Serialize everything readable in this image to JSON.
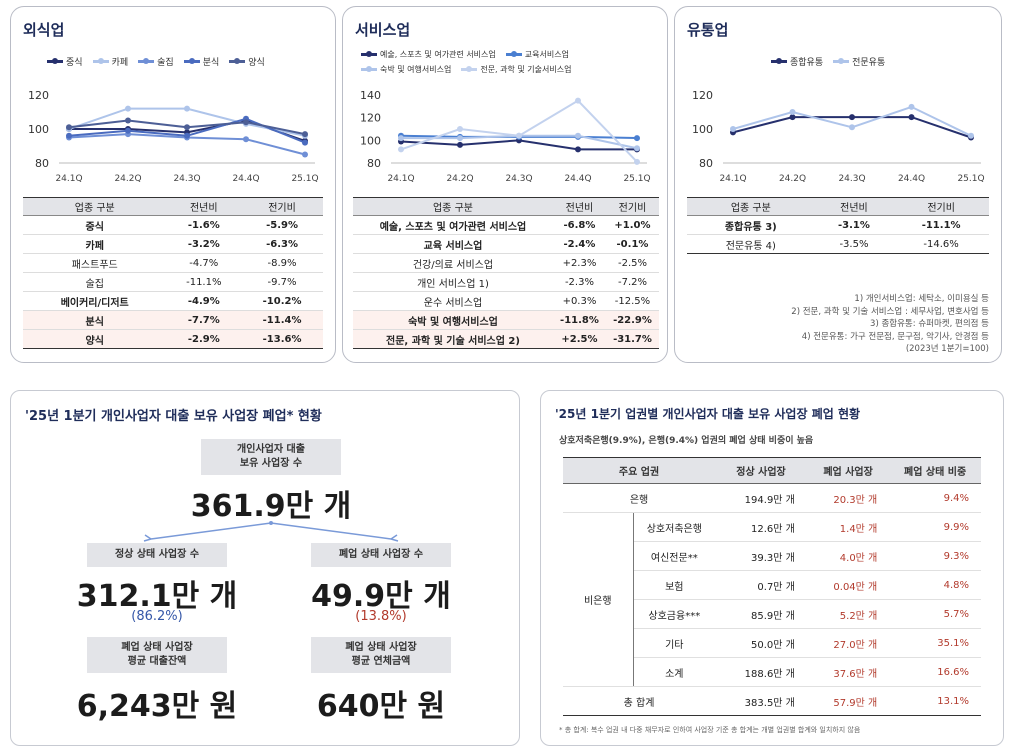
{
  "colors": {
    "navy": "#26306d",
    "mid": "#4a6bbf",
    "light": "#aec4ea",
    "gray": "#7a8db8",
    "red": "#b23a2c",
    "blue": "#3557a8"
  },
  "food": {
    "title": "외식업",
    "table_headers": [
      "업종 구분",
      "전년비",
      "전기비"
    ],
    "rows": [
      {
        "name": "중식",
        "yoy": "-1.6%",
        "qoq": "-5.9%",
        "bold": true,
        "hl": false
      },
      {
        "name": "카페",
        "yoy": "-3.2%",
        "qoq": "-6.3%",
        "bold": true,
        "hl": false
      },
      {
        "name": "패스트푸드",
        "yoy": "-4.7%",
        "qoq": "-8.9%",
        "bold": false,
        "hl": false
      },
      {
        "name": "술집",
        "yoy": "-11.1%",
        "qoq": "-9.7%",
        "bold": false,
        "hl": false
      },
      {
        "name": "베이커리/디저트",
        "yoy": "-4.9%",
        "qoq": "-10.2%",
        "bold": true,
        "hl": false
      },
      {
        "name": "분식",
        "yoy": "-7.7%",
        "qoq": "-11.4%",
        "bold": true,
        "hl": true
      },
      {
        "name": "양식",
        "yoy": "-2.9%",
        "qoq": "-13.6%",
        "bold": true,
        "hl": true
      }
    ]
  },
  "service": {
    "title": "서비스업",
    "table_headers": [
      "업종 구분",
      "전년비",
      "전기비"
    ],
    "rows": [
      {
        "name": "예술, 스포츠 및 여가관련 서비스업",
        "yoy": "-6.8%",
        "qoq": "+1.0%",
        "bold": true,
        "hl": false
      },
      {
        "name": "교육 서비스업",
        "yoy": "-2.4%",
        "qoq": "-0.1%",
        "bold": true,
        "hl": false
      },
      {
        "name": "건강/의료 서비스업",
        "yoy": "+2.3%",
        "qoq": "-2.5%",
        "bold": false,
        "hl": false
      },
      {
        "name": "개인 서비스업 1)",
        "yoy": "-2.3%",
        "qoq": "-7.2%",
        "bold": false,
        "hl": false
      },
      {
        "name": "운수 서비스업",
        "yoy": "+0.3%",
        "qoq": "-12.5%",
        "bold": false,
        "hl": false
      },
      {
        "name": "숙박 및 여행서비스업",
        "yoy": "-11.8%",
        "qoq": "-22.9%",
        "bold": true,
        "hl": true
      },
      {
        "name": "전문, 과학 및 기술 서비스업 2)",
        "yoy": "+2.5%",
        "qoq": "-31.7%",
        "bold": true,
        "hl": true
      }
    ]
  },
  "retail": {
    "title": "유통업",
    "table_headers": [
      "업종 구분",
      "전년비",
      "전기비"
    ],
    "rows": [
      {
        "name": "종합유통 3)",
        "yoy": "-3.1%",
        "qoq": "-11.1%",
        "bold": true,
        "hl": false
      },
      {
        "name": "전문유통 4)",
        "yoy": "-3.5%",
        "qoq": "-14.6%",
        "bold": false,
        "hl": false
      }
    ],
    "notes": [
      "1) 개인서비스업: 세탁소, 이미용실 등",
      "2) 전문, 과학 및 기술 서비스업 : 세무사업, 변호사업 등",
      "3) 종합유통: 슈퍼마켓, 편의점 등",
      "4) 전문유통: 가구 전문점, 문구점, 악기사, 안경점 등",
      "(2023년 1분기=100)"
    ]
  },
  "chart_data": [
    {
      "type": "line",
      "title": "외식업",
      "x": [
        "24.1Q",
        "24.2Q",
        "24.3Q",
        "24.4Q",
        "25.1Q"
      ],
      "ylim": [
        80,
        120
      ],
      "yticks": [
        80,
        100,
        120
      ],
      "legend": "top",
      "series": [
        {
          "name": "중식",
          "values": [
            100,
            100,
            98,
            105,
            93
          ],
          "color": "#26306d"
        },
        {
          "name": "카페",
          "values": [
            100,
            112,
            112,
            103,
            96
          ],
          "color": "#aec4ea"
        },
        {
          "name": "술집",
          "values": [
            95,
            97,
            95,
            94,
            85
          ],
          "color": "#6f8fd6"
        },
        {
          "name": "분식",
          "values": [
            96,
            99,
            96,
            106,
            92
          ],
          "color": "#4a6bbf"
        },
        {
          "name": "양식",
          "values": [
            101,
            105,
            101,
            104,
            97
          ],
          "color": "#4d5f96"
        }
      ]
    },
    {
      "type": "line",
      "title": "서비스업",
      "x": [
        "24.1Q",
        "24.2Q",
        "24.3Q",
        "24.4Q",
        "25.1Q"
      ],
      "ylim": [
        80,
        140
      ],
      "yticks": [
        80,
        100,
        120,
        140
      ],
      "legend": "top",
      "series": [
        {
          "name": "예술, 스포츠 및 여가관련 서비스업",
          "values": [
            99,
            96,
            100,
            92,
            92
          ],
          "color": "#26306d"
        },
        {
          "name": "교육서비스업",
          "values": [
            104,
            103,
            103,
            103,
            102
          ],
          "color": "#4a7fd1"
        },
        {
          "name": "숙박 및 여행서비스업",
          "values": [
            102,
            102,
            104,
            104,
            93
          ],
          "color": "#aec4ea"
        },
        {
          "name": "전문, 과학 및 기술서비스업",
          "values": [
            92,
            110,
            104,
            135,
            81
          ],
          "color": "#c3d2ee"
        }
      ]
    },
    {
      "type": "line",
      "title": "유통업",
      "x": [
        "24.1Q",
        "24.2Q",
        "24.3Q",
        "24.4Q",
        "25.1Q"
      ],
      "ylim": [
        80,
        120
      ],
      "yticks": [
        80,
        100,
        120
      ],
      "legend": "top",
      "series": [
        {
          "name": "종합유통",
          "values": [
            98,
            107,
            107,
            107,
            95
          ],
          "color": "#26306d"
        },
        {
          "name": "전문유통",
          "values": [
            100,
            110,
            101,
            113,
            96
          ],
          "color": "#aec4ea"
        }
      ]
    }
  ],
  "closure": {
    "title": "'25년 1분기 개인사업자 대출 보유 사업장 폐업* 현황",
    "total_label_1": "개인사업자 대출",
    "total_label_2": "보유 사업장 수",
    "total_value": "361.9만 개",
    "normal_label": "정상 상태 사업장 수",
    "normal_value": "312.1만 개",
    "normal_pct": "(86.2%)",
    "closed_label": "폐업 상태 사업장 수",
    "closed_value": "49.9만 개",
    "closed_pct": "(13.8%)",
    "loan_label_1": "폐업 상태 사업장",
    "loan_label_2": "평균 대출잔액",
    "loan_value": "6,243만 원",
    "arrears_label_1": "폐업 상태 사업장",
    "arrears_label_2": "평균 연체금액",
    "arrears_value": "640만 원"
  },
  "sector": {
    "title": "'25년 1분기 업권별 개인사업자 대출 보유 사업장 폐업 현황",
    "subtitle": "상호저축은행(9.9%), 은행(9.4%) 업권의 폐업 상태 비중이 높음",
    "headers": [
      "주요 업권",
      "정상 사업장",
      "폐업 사업장",
      "폐업 상태 비중"
    ],
    "bank": {
      "name": "은행",
      "normal": "194.9만 개",
      "closed": "20.3만 개",
      "ratio": "9.4%"
    },
    "nonbank_label": "비은행",
    "nonbank_rows": [
      {
        "name": "상호저축은행",
        "normal": "12.6만 개",
        "closed": "1.4만 개",
        "ratio": "9.9%"
      },
      {
        "name": "여신전문**",
        "normal": "39.3만 개",
        "closed": "4.0만 개",
        "ratio": "9.3%"
      },
      {
        "name": "보험",
        "normal": "0.7만 개",
        "closed": "0.04만 개",
        "ratio": "4.8%"
      },
      {
        "name": "상호금융***",
        "normal": "85.9만 개",
        "closed": "5.2만 개",
        "ratio": "5.7%"
      },
      {
        "name": "기타",
        "normal": "50.0만 개",
        "closed": "27.0만 개",
        "ratio": "35.1%"
      }
    ],
    "subtotal": {
      "name": "소계",
      "normal": "188.6만 개",
      "closed": "37.6만 개",
      "ratio": "16.6%"
    },
    "total": {
      "name": "총 합계",
      "normal": "383.5만 개",
      "closed": "57.9만 개",
      "ratio": "13.1%"
    },
    "footnote": "* 총 합계: 복수 업권 내 다중 채무자로 인하여 사업장 기준 총 합계는 개별 업권별 합계와 일치하지 않음"
  }
}
